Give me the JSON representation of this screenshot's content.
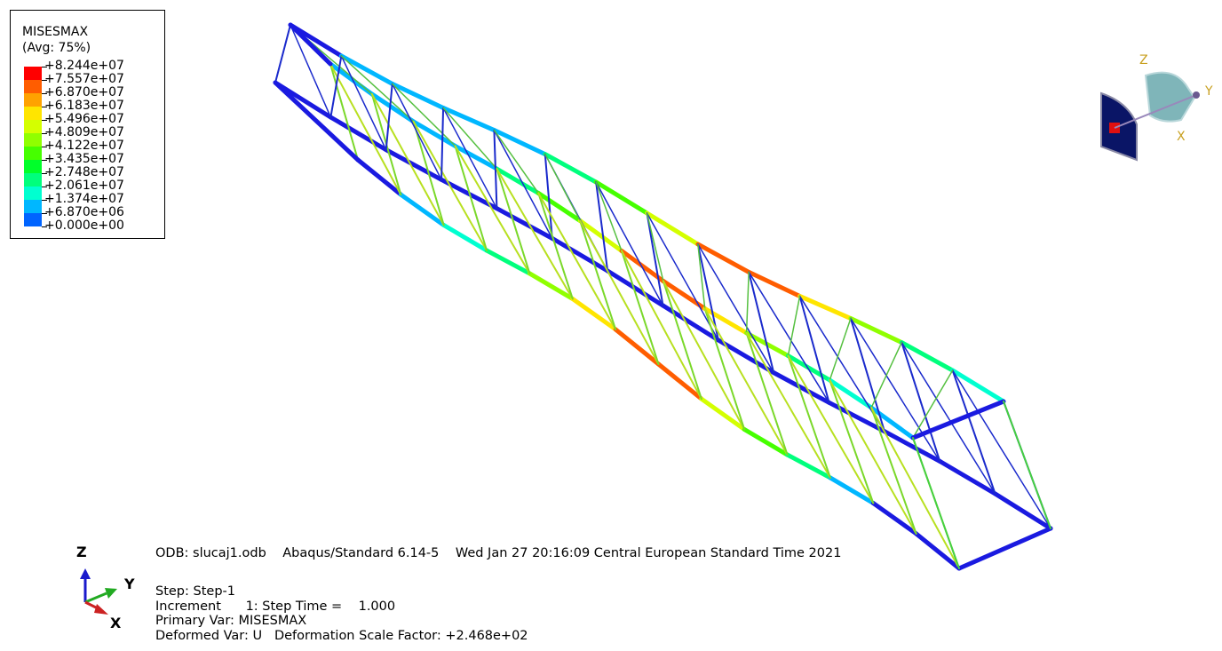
{
  "legend": {
    "title": "MISESMAX",
    "subtitle": "(Avg: 75%)",
    "levels": [
      {
        "label": "+8.244e+07",
        "color": "#ff0000"
      },
      {
        "label": "+7.557e+07",
        "color": "#ff5d00"
      },
      {
        "label": "+6.870e+07",
        "color": "#ffa200"
      },
      {
        "label": "+6.183e+07",
        "color": "#ffe500"
      },
      {
        "label": "+5.496e+07",
        "color": "#d4ff00"
      },
      {
        "label": "+4.809e+07",
        "color": "#90ff00"
      },
      {
        "label": "+4.122e+07",
        "color": "#46ff00"
      },
      {
        "label": "+3.435e+07",
        "color": "#00ff2a"
      },
      {
        "label": "+2.748e+07",
        "color": "#00ff7d"
      },
      {
        "label": "+2.061e+07",
        "color": "#00ffd0"
      },
      {
        "label": "+1.374e+07",
        "color": "#00b7ff"
      },
      {
        "label": "+6.870e+06",
        "color": "#0064ff"
      },
      {
        "label": "+0.000e+00",
        "color": "#1010e8"
      }
    ]
  },
  "view_cube": {
    "labels": [
      "Z",
      "Y",
      "X"
    ]
  },
  "triad": {
    "z": "Z",
    "y": "Y",
    "x": "X"
  },
  "info": {
    "odb_line": "ODB: slucaj1.odb    Abaqus/Standard 6.14-5    Wed Jan 27 20:16:09 Central European Standard Time 2021",
    "step_line": "Step: Step-1",
    "increment_line": "Increment      1: Step Time =    1.000",
    "primary_var_line": "Primary Var: MISESMAX",
    "deformed_var_line": "Deformed Var: U   Deformation Scale Factor: +2.468e+02"
  },
  "colors": {
    "low": "#1010e8",
    "mid": "#46ff00",
    "high": "#ff0000"
  }
}
